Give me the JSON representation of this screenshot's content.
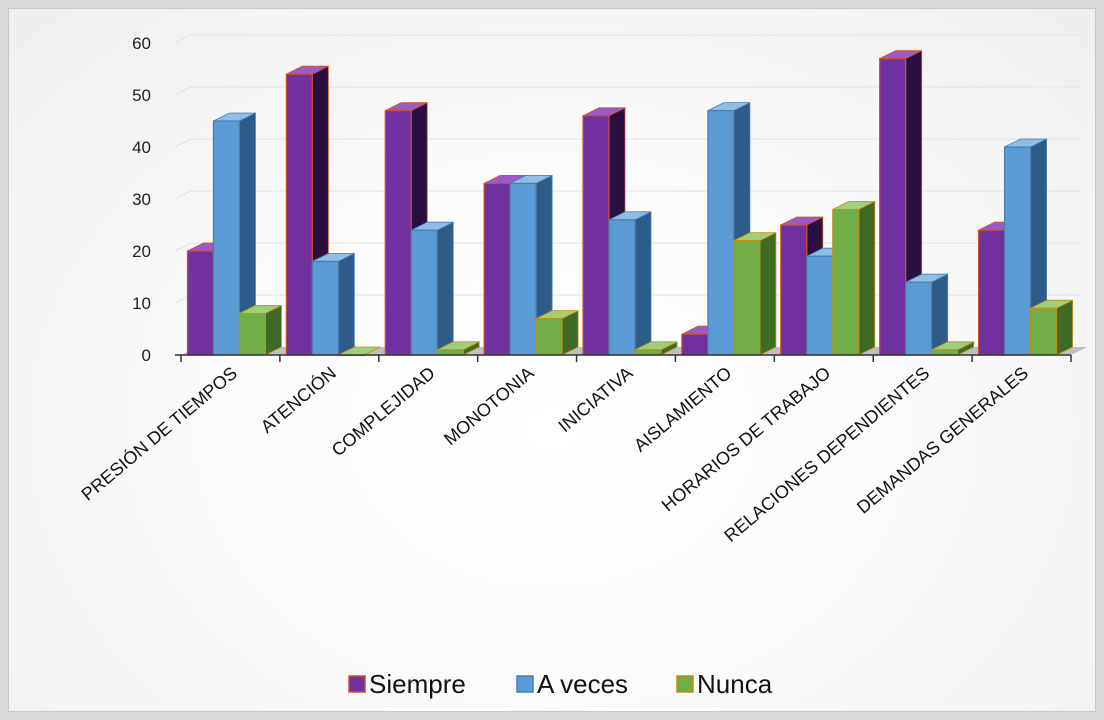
{
  "chart_data": {
    "type": "bar",
    "categories": [
      "PRESIÓN DE TIEMPOS",
      "ATENCIÓN",
      "COMPLEJIDAD",
      "MONOTONIA",
      "INICIATIVA",
      "AISLAMIENTO",
      "HORARIOS DE TRABAJO",
      "RELACIONES DEPENDIENTES",
      "DEMANDAS GENERALES"
    ],
    "series": [
      {
        "name": "Siempre",
        "values": [
          20,
          54,
          47,
          33,
          46,
          4,
          25,
          57,
          24
        ]
      },
      {
        "name": "A veces",
        "values": [
          45,
          18,
          24,
          33,
          26,
          47,
          19,
          14,
          40
        ]
      },
      {
        "name": "Nunca",
        "values": [
          8,
          0,
          1,
          7,
          1,
          22,
          28,
          1,
          9
        ]
      }
    ],
    "yticks": [
      "0",
      "10",
      "20",
      "30",
      "40",
      "50",
      "60"
    ],
    "ylim": [
      0,
      60
    ],
    "grid": true,
    "legend_position": "bottom",
    "style": "3d-clustered-column"
  },
  "colors": {
    "Siempre": {
      "front": "#7030a0",
      "side": "#2a1040",
      "top": "#9a5ac8",
      "edge": "#d05020"
    },
    "A veces": {
      "front": "#5b9bd5",
      "side": "#2e5c88",
      "top": "#8fbde6",
      "edge": "#4a7eb0"
    },
    "Nunca": {
      "front": "#70ad47",
      "side": "#3e6a24",
      "top": "#a0cf7c",
      "edge": "#c09010"
    }
  }
}
